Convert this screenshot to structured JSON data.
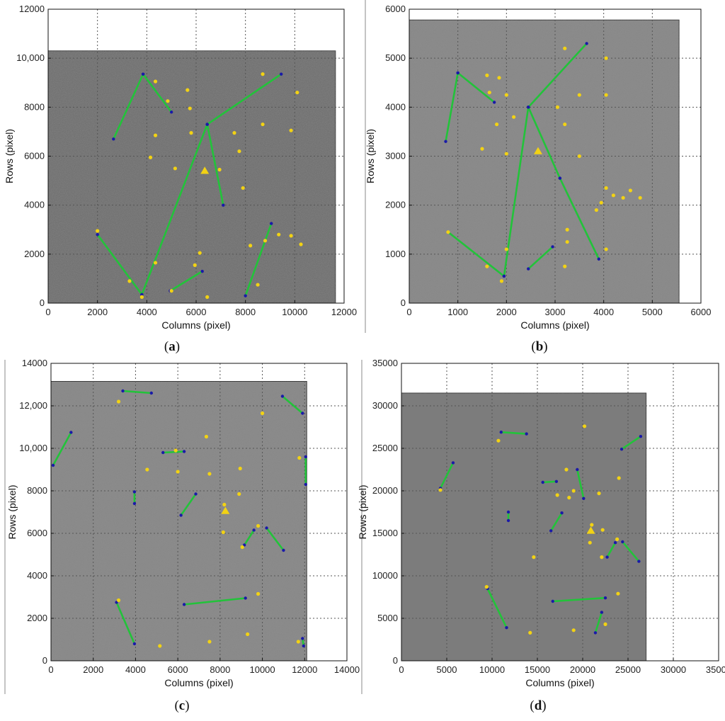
{
  "colors": {
    "line": "#22c33a",
    "endpoint": "#1a1aa8",
    "point": "#f2d214",
    "triangle": "#f2d214",
    "image_dark": "#6b6b6b",
    "image_light": "#8e8e8e",
    "grid": "#555555",
    "divider": "#888888"
  },
  "chart_data": [
    {
      "type": "scatter",
      "caption": "a",
      "xlabel": "Columns (pixel)",
      "ylabel": "Rows (pixel)",
      "xlim": [
        0,
        12000
      ],
      "ylim": [
        0,
        12000
      ],
      "xticks": [
        0,
        2000,
        4000,
        6000,
        8000,
        10000,
        12000
      ],
      "yticks": [
        0,
        2000,
        4000,
        6000,
        8000,
        10000,
        12000
      ],
      "xtick_labels": [
        "0",
        "2000",
        "4000",
        "6000",
        "8000",
        "10000",
        "12000"
      ],
      "ytick_labels": [
        "0",
        "2000",
        "4000",
        "6000",
        "8000",
        "10,000",
        "12000"
      ],
      "grid": true,
      "image_extent": [
        0,
        11650,
        0,
        10300
      ],
      "image_tone": "dark",
      "segments": [
        [
          [
            2650,
            6700
          ],
          [
            3850,
            9350
          ]
        ],
        [
          [
            3850,
            9350
          ],
          [
            5000,
            7800
          ]
        ],
        [
          [
            2000,
            2800
          ],
          [
            3800,
            350
          ]
        ],
        [
          [
            3800,
            350
          ],
          [
            6450,
            7300
          ]
        ],
        [
          [
            6450,
            7300
          ],
          [
            9450,
            9350
          ]
        ],
        [
          [
            6450,
            7300
          ],
          [
            7100,
            4000
          ]
        ],
        [
          [
            4950,
            500
          ],
          [
            6250,
            1300
          ]
        ],
        [
          [
            8000,
            300
          ],
          [
            9050,
            3250
          ]
        ]
      ],
      "points": [
        [
          4350,
          9050
        ],
        [
          4850,
          8250
        ],
        [
          5650,
          8700
        ],
        [
          5750,
          7950
        ],
        [
          5800,
          6950
        ],
        [
          4350,
          6850
        ],
        [
          4150,
          5950
        ],
        [
          5150,
          5500
        ],
        [
          6950,
          5450
        ],
        [
          7550,
          6950
        ],
        [
          7750,
          6200
        ],
        [
          7900,
          4700
        ],
        [
          8700,
          9350
        ],
        [
          8700,
          7300
        ],
        [
          9850,
          7050
        ],
        [
          10100,
          8600
        ],
        [
          2000,
          2950
        ],
        [
          3300,
          900
        ],
        [
          3800,
          250
        ],
        [
          4350,
          1650
        ],
        [
          5000,
          500
        ],
        [
          5950,
          1550
        ],
        [
          6150,
          2050
        ],
        [
          6450,
          250
        ],
        [
          8200,
          2350
        ],
        [
          8500,
          750
        ],
        [
          8800,
          2550
        ],
        [
          9350,
          2800
        ],
        [
          9850,
          2750
        ],
        [
          10250,
          2400
        ]
      ],
      "triangles": [
        [
          6350,
          5400
        ]
      ]
    },
    {
      "type": "scatter",
      "caption": "b",
      "xlabel": "Columns (pixel)",
      "ylabel": "Rows (pixel)",
      "xlim": [
        0,
        6000
      ],
      "ylim": [
        0,
        6000
      ],
      "xticks": [
        0,
        1000,
        2000,
        3000,
        4000,
        5000,
        6000
      ],
      "yticks": [
        0,
        1000,
        2000,
        3000,
        4000,
        5000,
        6000
      ],
      "xtick_labels": [
        "0",
        "1000",
        "2000",
        "3000",
        "4000",
        "5000",
        "6000"
      ],
      "ytick_labels": [
        "0",
        "1000",
        "2000",
        "3000",
        "4000",
        "5000",
        "6000"
      ],
      "grid": true,
      "image_extent": [
        0,
        5550,
        0,
        5780
      ],
      "image_tone": "light",
      "segments": [
        [
          [
            750,
            3300
          ],
          [
            1000,
            4700
          ]
        ],
        [
          [
            1000,
            4700
          ],
          [
            1750,
            4100
          ]
        ],
        [
          [
            2450,
            4000
          ],
          [
            3650,
            5300
          ]
        ],
        [
          [
            2450,
            4000
          ],
          [
            1950,
            550
          ]
        ],
        [
          [
            2450,
            4000
          ],
          [
            3100,
            2550
          ]
        ],
        [
          [
            3100,
            2550
          ],
          [
            3900,
            900
          ]
        ],
        [
          [
            800,
            1450
          ],
          [
            1950,
            550
          ]
        ],
        [
          [
            2450,
            700
          ],
          [
            2950,
            1150
          ]
        ]
      ],
      "points": [
        [
          1600,
          4650
        ],
        [
          1850,
          4600
        ],
        [
          2000,
          4250
        ],
        [
          1650,
          4300
        ],
        [
          1800,
          3650
        ],
        [
          1500,
          3150
        ],
        [
          2000,
          3050
        ],
        [
          2150,
          3800
        ],
        [
          3050,
          4000
        ],
        [
          3200,
          3650
        ],
        [
          3200,
          5200
        ],
        [
          3500,
          4250
        ],
        [
          4050,
          5000
        ],
        [
          4050,
          4250
        ],
        [
          3500,
          3000
        ],
        [
          4050,
          2350
        ],
        [
          4200,
          2200
        ],
        [
          4400,
          2150
        ],
        [
          4550,
          2300
        ],
        [
          4750,
          2150
        ],
        [
          3950,
          2050
        ],
        [
          3850,
          1900
        ],
        [
          3250,
          1500
        ],
        [
          3250,
          1250
        ],
        [
          3200,
          750
        ],
        [
          4050,
          1100
        ],
        [
          1600,
          750
        ],
        [
          1900,
          450
        ],
        [
          2000,
          1100
        ],
        [
          800,
          1450
        ]
      ],
      "triangles": [
        [
          2650,
          3100
        ]
      ]
    },
    {
      "type": "scatter",
      "caption": "c",
      "xlabel": "Columns (pixel)",
      "ylabel": "Rows (pixel)",
      "xlim": [
        0,
        14000
      ],
      "ylim": [
        0,
        14000
      ],
      "xticks": [
        0,
        2000,
        4000,
        6000,
        8000,
        10000,
        12000,
        14000
      ],
      "yticks": [
        0,
        2000,
        4000,
        6000,
        8000,
        10000,
        12000,
        14000
      ],
      "xtick_labels": [
        "0",
        "2000",
        "4000",
        "6000",
        "8000",
        "10000",
        "12000",
        "14000"
      ],
      "ytick_labels": [
        "0",
        "2000",
        "4000",
        "6000",
        "8000",
        "10,000",
        "12,000",
        "14000"
      ],
      "grid": true,
      "image_extent": [
        0,
        12100,
        0,
        13150
      ],
      "image_tone": "light",
      "segments": [
        [
          [
            3400,
            12700
          ],
          [
            4750,
            12600
          ]
        ],
        [
          [
            10950,
            12450
          ],
          [
            11900,
            11650
          ]
        ],
        [
          [
            100,
            9200
          ],
          [
            950,
            10750
          ]
        ],
        [
          [
            5300,
            9800
          ],
          [
            6300,
            9850
          ]
        ],
        [
          [
            3950,
            7950
          ],
          [
            3950,
            7400
          ]
        ],
        [
          [
            6150,
            6850
          ],
          [
            6850,
            7850
          ]
        ],
        [
          [
            9150,
            5450
          ],
          [
            9600,
            6150
          ]
        ],
        [
          [
            10200,
            6250
          ],
          [
            11000,
            5200
          ]
        ],
        [
          [
            12050,
            9600
          ],
          [
            12050,
            8300
          ]
        ],
        [
          [
            6300,
            2650
          ],
          [
            9200,
            2950
          ]
        ],
        [
          [
            3100,
            2750
          ],
          [
            3950,
            800
          ]
        ],
        [
          [
            11900,
            1050
          ],
          [
            11950,
            700
          ]
        ]
      ],
      "points": [
        [
          3200,
          12200
        ],
        [
          10000,
          11650
        ],
        [
          7350,
          10550
        ],
        [
          5900,
          9900
        ],
        [
          4550,
          9000
        ],
        [
          6000,
          8900
        ],
        [
          7500,
          8800
        ],
        [
          8950,
          9050
        ],
        [
          8900,
          7850
        ],
        [
          8200,
          7350
        ],
        [
          8150,
          6050
        ],
        [
          9050,
          5350
        ],
        [
          9800,
          6350
        ],
        [
          11750,
          9550
        ],
        [
          3200,
          2850
        ],
        [
          9800,
          3150
        ],
        [
          9300,
          1250
        ],
        [
          7500,
          900
        ],
        [
          5150,
          700
        ],
        [
          11700,
          900
        ]
      ],
      "triangles": [
        [
          8250,
          7050
        ]
      ]
    },
    {
      "type": "scatter",
      "caption": "d",
      "xlabel": "Columns (pixel)",
      "ylabel": "Rows (pixel)",
      "xlim": [
        0,
        35000
      ],
      "ylim": [
        0,
        35000
      ],
      "xticks": [
        0,
        5000,
        10000,
        15000,
        20000,
        25000,
        30000,
        35000
      ],
      "yticks": [
        0,
        5000,
        10000,
        15000,
        20000,
        25000,
        30000,
        35000
      ],
      "xtick_labels": [
        "0",
        "5000",
        "10000",
        "15000",
        "20000",
        "25000",
        "30000",
        "35000"
      ],
      "ytick_labels": [
        "0",
        "5000",
        "10000",
        "15000",
        "20000",
        "25000",
        "30000",
        "35000"
      ],
      "grid": true,
      "image_extent": [
        0,
        27000,
        0,
        31500
      ],
      "image_tone": "medium",
      "segments": [
        [
          [
            11000,
            26900
          ],
          [
            13800,
            26700
          ]
        ],
        [
          [
            24300,
            24900
          ],
          [
            26400,
            26400
          ]
        ],
        [
          [
            4300,
            20300
          ],
          [
            5700,
            23300
          ]
        ],
        [
          [
            15600,
            21000
          ],
          [
            17100,
            21100
          ]
        ],
        [
          [
            19400,
            22500
          ],
          [
            20100,
            19100
          ]
        ],
        [
          [
            11800,
            17500
          ],
          [
            11800,
            16500
          ]
        ],
        [
          [
            16500,
            15300
          ],
          [
            17700,
            17400
          ]
        ],
        [
          [
            22700,
            12200
          ],
          [
            23600,
            13900
          ]
        ],
        [
          [
            24400,
            14000
          ],
          [
            26200,
            11700
          ]
        ],
        [
          [
            16700,
            7000
          ],
          [
            22500,
            7400
          ]
        ],
        [
          [
            9500,
            8500
          ],
          [
            11600,
            3900
          ]
        ],
        [
          [
            21400,
            3300
          ],
          [
            22100,
            5700
          ]
        ]
      ],
      "points": [
        [
          10700,
          25900
        ],
        [
          20200,
          27600
        ],
        [
          4300,
          20100
        ],
        [
          18200,
          22500
        ],
        [
          17200,
          19500
        ],
        [
          18500,
          19200
        ],
        [
          19000,
          20000
        ],
        [
          21800,
          19700
        ],
        [
          24000,
          21500
        ],
        [
          21000,
          16000
        ],
        [
          20800,
          13900
        ],
        [
          22200,
          15400
        ],
        [
          22100,
          12200
        ],
        [
          23800,
          14300
        ],
        [
          23900,
          7900
        ],
        [
          22500,
          4300
        ],
        [
          9400,
          8700
        ],
        [
          19000,
          3600
        ],
        [
          14200,
          3300
        ],
        [
          14600,
          12200
        ]
      ],
      "triangles": [
        [
          20900,
          15300
        ]
      ]
    }
  ]
}
